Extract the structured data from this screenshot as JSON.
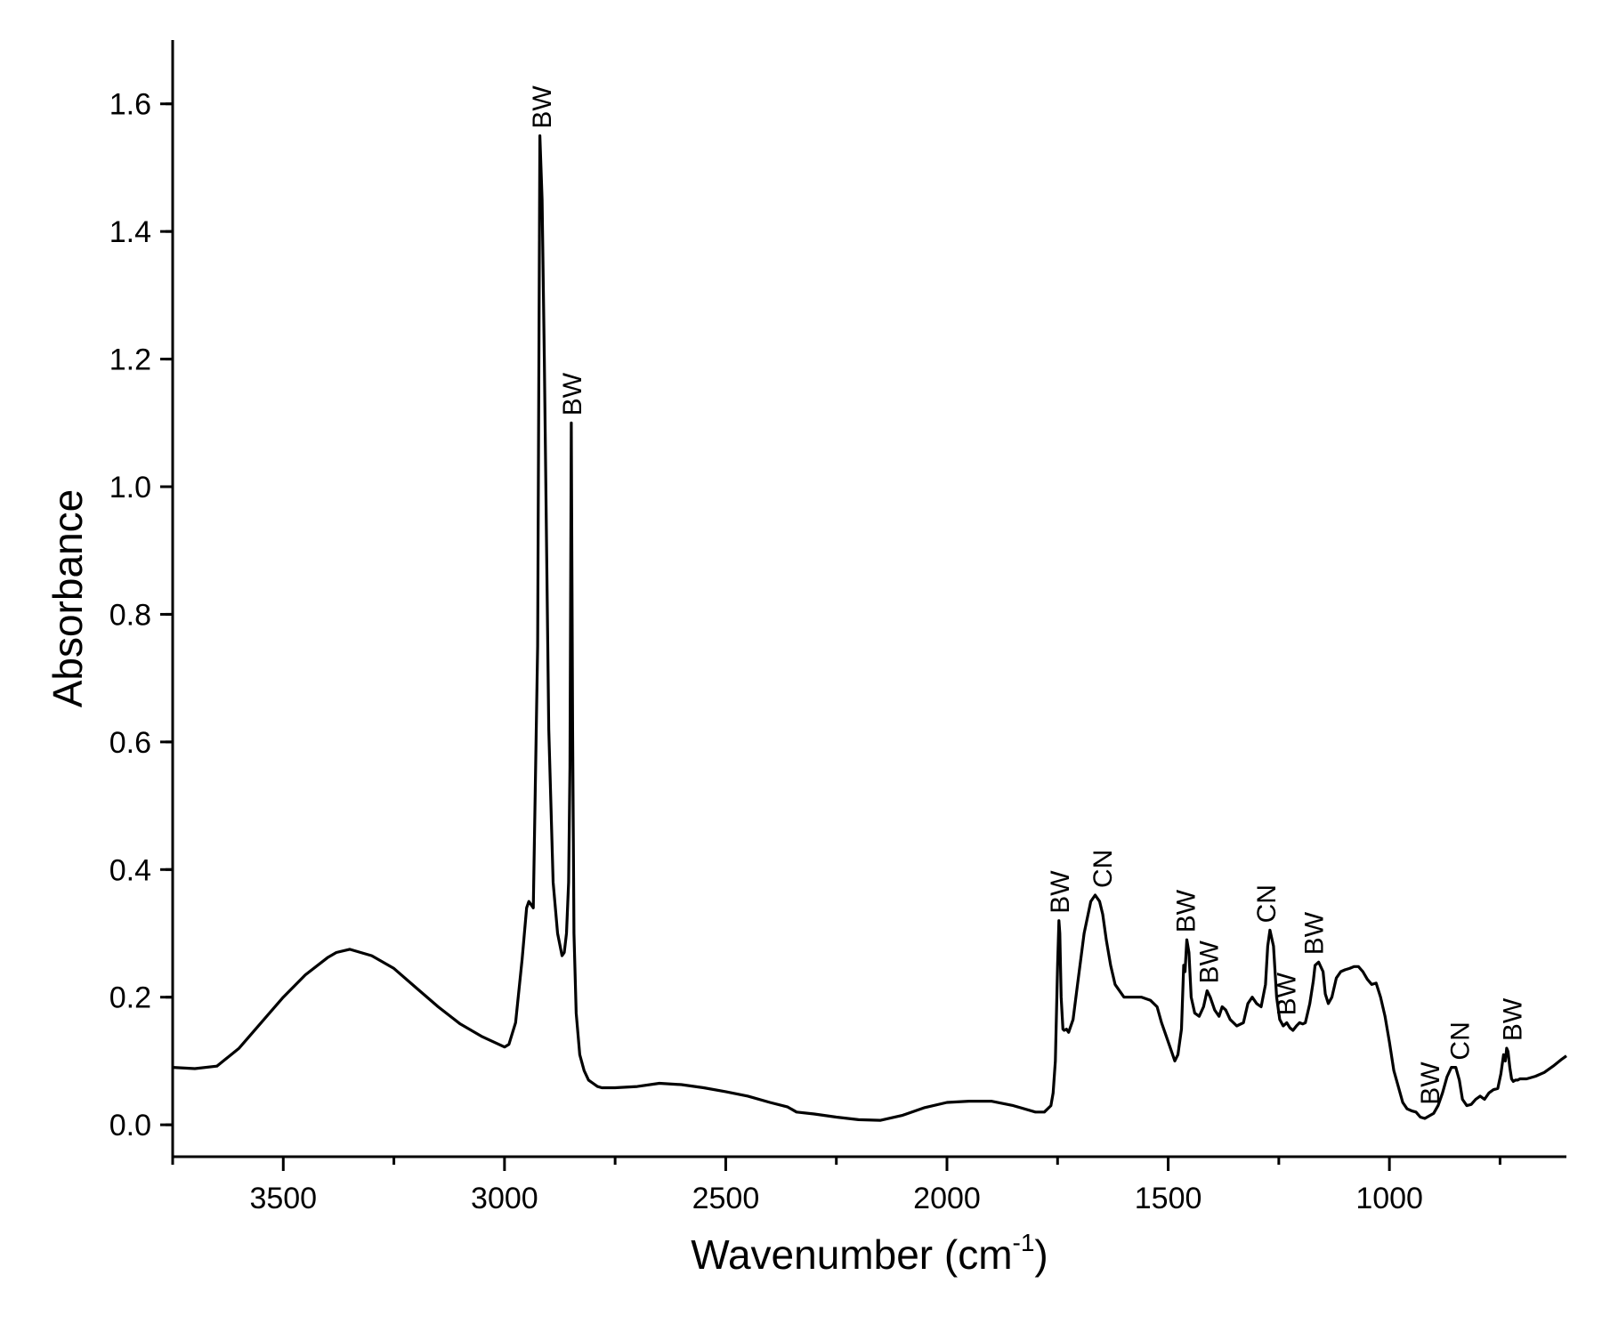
{
  "chart_data": {
    "type": "line",
    "xlabel": "Wavenumber (cm",
    "xlabel_superscript": "-1",
    "xlabel_suffix": ")",
    "ylabel": "Absorbance",
    "xlim": [
      3750,
      600
    ],
    "ylim": [
      -0.05,
      1.7
    ],
    "x_reversed": true,
    "grid": false,
    "x_ticks": [
      3500,
      3000,
      2500,
      2000,
      1500,
      1000
    ],
    "x_tick_labels": [
      "3500",
      "3000",
      "2500",
      "2000",
      "1500",
      "1000"
    ],
    "y_ticks": [
      0.0,
      0.2,
      0.4,
      0.6,
      0.8,
      1.0,
      1.2,
      1.4,
      1.6
    ],
    "y_tick_labels": [
      "0.0",
      "0.2",
      "0.4",
      "0.6",
      "0.8",
      "1.0",
      "1.2",
      "1.4",
      "1.6"
    ],
    "series": [
      {
        "color": "#000000",
        "x": [
          3750,
          3700,
          3650,
          3600,
          3550,
          3500,
          3450,
          3400,
          3380,
          3350,
          3300,
          3250,
          3200,
          3150,
          3100,
          3050,
          3000,
          2990,
          2975,
          2960,
          2950,
          2945,
          2935,
          2925,
          2920,
          2915,
          2910,
          2900,
          2890,
          2880,
          2870,
          2865,
          2860,
          2855,
          2852,
          2849,
          2846,
          2843,
          2838,
          2830,
          2820,
          2810,
          2800,
          2790,
          2780,
          2750,
          2700,
          2650,
          2600,
          2550,
          2500,
          2450,
          2400,
          2360,
          2340,
          2300,
          2250,
          2200,
          2150,
          2100,
          2050,
          2000,
          1950,
          1900,
          1850,
          1800,
          1780,
          1765,
          1760,
          1755,
          1750,
          1747,
          1745,
          1742,
          1738,
          1735,
          1730,
          1725,
          1715,
          1705,
          1690,
          1675,
          1665,
          1655,
          1648,
          1640,
          1630,
          1620,
          1600,
          1580,
          1560,
          1540,
          1525,
          1515,
          1505,
          1495,
          1485,
          1478,
          1470,
          1465,
          1462,
          1458,
          1453,
          1448,
          1440,
          1430,
          1420,
          1412,
          1405,
          1395,
          1385,
          1378,
          1370,
          1360,
          1345,
          1330,
          1320,
          1310,
          1300,
          1290,
          1280,
          1275,
          1270,
          1262,
          1255,
          1248,
          1240,
          1232,
          1225,
          1218,
          1210,
          1203,
          1196,
          1190,
          1185,
          1180,
          1172,
          1168,
          1160,
          1150,
          1145,
          1138,
          1130,
          1120,
          1110,
          1100,
          1090,
          1080,
          1070,
          1060,
          1050,
          1040,
          1030,
          1020,
          1010,
          1000,
          990,
          980,
          970,
          960,
          950,
          940,
          930,
          920,
          910,
          900,
          890,
          880,
          870,
          860,
          850,
          842,
          835,
          825,
          815,
          805,
          795,
          785,
          775,
          765,
          755,
          748,
          742,
          738,
          735,
          732,
          728,
          724,
          720,
          715,
          710,
          705,
          690,
          670,
          650,
          630,
          610,
          600
        ],
        "y": [
          0.09,
          0.088,
          0.092,
          0.12,
          0.16,
          0.2,
          0.235,
          0.262,
          0.27,
          0.275,
          0.265,
          0.245,
          0.215,
          0.185,
          0.158,
          0.138,
          0.122,
          0.126,
          0.16,
          0.26,
          0.34,
          0.35,
          0.34,
          0.75,
          1.55,
          1.45,
          1.2,
          0.62,
          0.38,
          0.3,
          0.265,
          0.27,
          0.3,
          0.38,
          0.56,
          1.1,
          0.62,
          0.3,
          0.175,
          0.11,
          0.085,
          0.07,
          0.065,
          0.06,
          0.058,
          0.058,
          0.06,
          0.065,
          0.063,
          0.058,
          0.052,
          0.045,
          0.035,
          0.028,
          0.02,
          0.017,
          0.012,
          0.008,
          0.007,
          0.015,
          0.027,
          0.035,
          0.037,
          0.037,
          0.03,
          0.02,
          0.02,
          0.03,
          0.05,
          0.1,
          0.25,
          0.32,
          0.3,
          0.2,
          0.15,
          0.148,
          0.15,
          0.145,
          0.165,
          0.22,
          0.3,
          0.35,
          0.36,
          0.35,
          0.33,
          0.29,
          0.25,
          0.22,
          0.2,
          0.2,
          0.2,
          0.195,
          0.185,
          0.16,
          0.14,
          0.12,
          0.1,
          0.11,
          0.15,
          0.25,
          0.24,
          0.29,
          0.27,
          0.2,
          0.175,
          0.17,
          0.185,
          0.21,
          0.2,
          0.18,
          0.17,
          0.185,
          0.18,
          0.165,
          0.155,
          0.16,
          0.19,
          0.2,
          0.19,
          0.185,
          0.22,
          0.28,
          0.305,
          0.28,
          0.2,
          0.165,
          0.155,
          0.16,
          0.152,
          0.148,
          0.155,
          0.16,
          0.158,
          0.16,
          0.175,
          0.19,
          0.225,
          0.25,
          0.255,
          0.24,
          0.205,
          0.19,
          0.2,
          0.23,
          0.24,
          0.243,
          0.245,
          0.248,
          0.248,
          0.24,
          0.228,
          0.22,
          0.222,
          0.2,
          0.17,
          0.13,
          0.085,
          0.06,
          0.035,
          0.025,
          0.022,
          0.02,
          0.012,
          0.01,
          0.014,
          0.018,
          0.03,
          0.05,
          0.075,
          0.09,
          0.09,
          0.07,
          0.04,
          0.03,
          0.032,
          0.04,
          0.045,
          0.04,
          0.05,
          0.055,
          0.057,
          0.08,
          0.11,
          0.1,
          0.12,
          0.115,
          0.09,
          0.072,
          0.068,
          0.07,
          0.07,
          0.072,
          0.072,
          0.076,
          0.082,
          0.092,
          0.103,
          0.108
        ]
      }
    ],
    "annotations": [
      {
        "text": "BW",
        "x": 2917,
        "y": 1.55
      },
      {
        "text": "BW",
        "x": 2849,
        "y": 1.1
      },
      {
        "text": "BW",
        "x": 1747,
        "y": 0.32
      },
      {
        "text": "CN",
        "x": 1650,
        "y": 0.36
      },
      {
        "text": "BW",
        "x": 1462,
        "y": 0.29
      },
      {
        "text": "BW",
        "x": 1410,
        "y": 0.21
      },
      {
        "text": "CN",
        "x": 1280,
        "y": 0.305
      },
      {
        "text": "BW",
        "x": 1235,
        "y": 0.16
      },
      {
        "text": "BW",
        "x": 1172,
        "y": 0.255
      },
      {
        "text": "BW",
        "x": 910,
        "y": 0.02
      },
      {
        "text": "CN",
        "x": 842,
        "y": 0.09
      },
      {
        "text": "BW",
        "x": 724,
        "y": 0.12
      }
    ]
  }
}
